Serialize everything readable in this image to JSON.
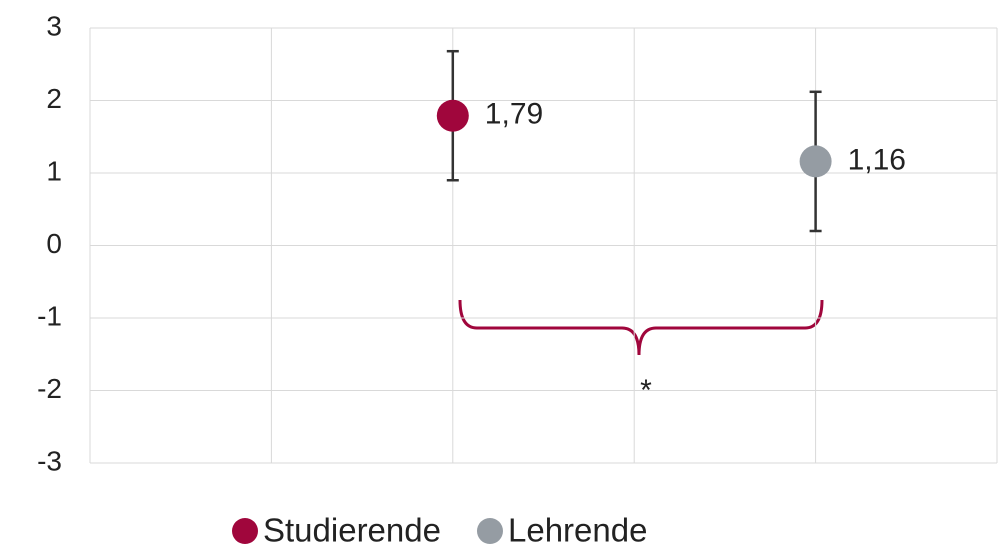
{
  "chart_data": {
    "type": "scatter",
    "series": [
      {
        "name": "Studierende",
        "color": "#a0063c",
        "x": [
          2
        ],
        "values": [
          1.79
        ],
        "errors": [
          0.89
        ],
        "value_labels": [
          "1,79"
        ]
      },
      {
        "name": "Lehrende",
        "color": "#959ca3",
        "x": [
          4
        ],
        "values": [
          1.16
        ],
        "errors": [
          0.96
        ],
        "value_labels": [
          "1,16"
        ]
      }
    ],
    "xlim": [
      0,
      5
    ],
    "xticks": [
      0,
      1,
      2,
      3,
      4,
      5
    ],
    "ylim": [
      -3,
      3
    ],
    "yticks": [
      -3,
      -2,
      -1,
      0,
      1,
      2,
      3
    ],
    "grid": true,
    "legend": "bottom",
    "annotation": "*"
  }
}
